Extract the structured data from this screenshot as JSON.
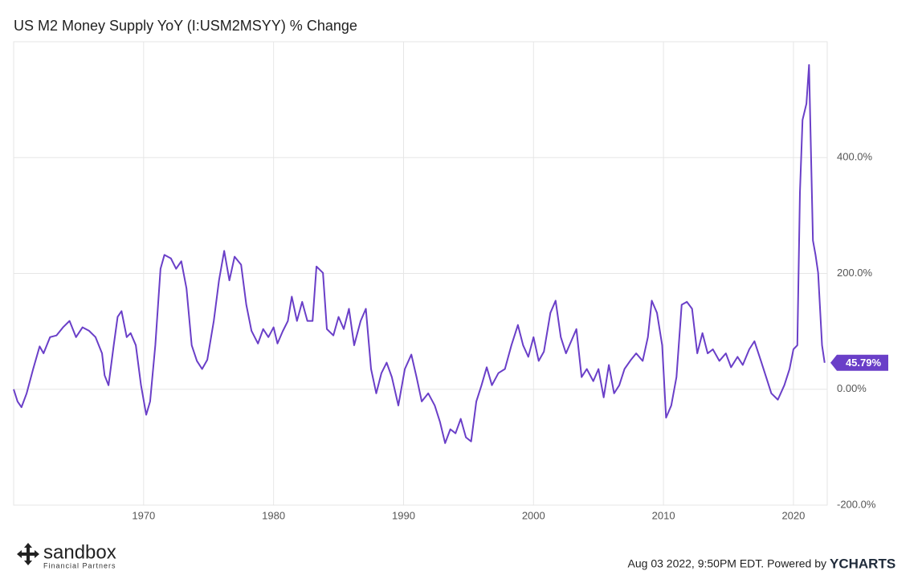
{
  "chart_data": {
    "type": "line",
    "title": "US M2 Money Supply YoY (I:USM2MSYY) % Change",
    "xlim": [
      1960.0,
      2022.6
    ],
    "xticks": [
      1970,
      1980,
      1990,
      2000,
      2010,
      2020
    ],
    "ylim": [
      -200,
      600
    ],
    "yticks": [
      {
        "value": -200,
        "label": "-200.0%"
      },
      {
        "value": 0,
        "label": "0.00%"
      },
      {
        "value": 200,
        "label": "200.0%"
      },
      {
        "value": 400,
        "label": "400.0%"
      }
    ],
    "grid": true,
    "series": [
      {
        "color": "#6a3fc8",
        "x": [
          1960.0,
          1960.3,
          1960.6,
          1961.0,
          1961.5,
          1962.0,
          1962.3,
          1962.8,
          1963.3,
          1963.8,
          1964.3,
          1964.8,
          1965.3,
          1965.8,
          1966.3,
          1966.8,
          1967.0,
          1967.3,
          1967.7,
          1968.0,
          1968.3,
          1968.7,
          1969.0,
          1969.4,
          1969.8,
          1970.2,
          1970.5,
          1970.9,
          1971.3,
          1971.6,
          1972.1,
          1972.5,
          1972.9,
          1973.3,
          1973.7,
          1974.1,
          1974.5,
          1974.9,
          1975.4,
          1975.8,
          1976.2,
          1976.6,
          1977.0,
          1977.5,
          1977.9,
          1978.3,
          1978.8,
          1979.2,
          1979.6,
          1980.0,
          1980.3,
          1980.7,
          1981.1,
          1981.4,
          1981.8,
          1982.2,
          1982.6,
          1983.0,
          1983.3,
          1983.8,
          1984.1,
          1984.6,
          1985.0,
          1985.4,
          1985.8,
          1986.2,
          1986.7,
          1987.1,
          1987.5,
          1987.9,
          1988.3,
          1988.7,
          1989.1,
          1989.6,
          1990.1,
          1990.6,
          1991.0,
          1991.4,
          1991.9,
          1992.4,
          1992.8,
          1993.2,
          1993.6,
          1994.0,
          1994.4,
          1994.8,
          1995.2,
          1995.6,
          1996.0,
          1996.4,
          1996.8,
          1997.3,
          1997.8,
          1998.3,
          1998.8,
          1999.2,
          1999.6,
          2000.0,
          2000.4,
          2000.8,
          2001.3,
          2001.7,
          2002.1,
          2002.5,
          2002.9,
          2003.3,
          2003.7,
          2004.1,
          2004.6,
          2005.0,
          2005.4,
          2005.8,
          2006.2,
          2006.6,
          2007.0,
          2007.5,
          2007.9,
          2008.4,
          2008.8,
          2009.1,
          2009.5,
          2009.9,
          2010.2,
          2010.6,
          2011.0,
          2011.4,
          2011.8,
          2012.2,
          2012.6,
          2013.0,
          2013.4,
          2013.8,
          2014.3,
          2014.8,
          2015.2,
          2015.7,
          2016.1,
          2016.6,
          2017.0,
          2017.5,
          2017.9,
          2018.3,
          2018.8,
          2019.3,
          2019.7,
          2020.0,
          2020.3,
          2020.5,
          2020.7,
          2021.0,
          2021.2,
          2021.5,
          2021.7,
          2021.9,
          2022.2,
          2022.4
        ],
        "values": [
          0,
          -21,
          -31,
          -7,
          35,
          74,
          62,
          90,
          93,
          107,
          118,
          90,
          107,
          101,
          90,
          62,
          24,
          7,
          76,
          125,
          135,
          90,
          97,
          76,
          7,
          -44,
          -21,
          76,
          208,
          232,
          226,
          208,
          221,
          174,
          76,
          49,
          35,
          51,
          118,
          188,
          239,
          188,
          229,
          215,
          146,
          101,
          79,
          104,
          90,
          107,
          79,
          100,
          118,
          160,
          118,
          151,
          118,
          118,
          212,
          201,
          104,
          93,
          125,
          104,
          139,
          76,
          118,
          139,
          35,
          -7,
          28,
          46,
          21,
          -28,
          35,
          60,
          21,
          -21,
          -7,
          -28,
          -56,
          -93,
          -69,
          -76,
          -51,
          -83,
          -90,
          -21,
          7,
          38,
          7,
          28,
          35,
          76,
          111,
          76,
          56,
          90,
          49,
          65,
          132,
          153,
          90,
          62,
          83,
          104,
          21,
          35,
          14,
          35,
          -14,
          42,
          -7,
          7,
          35,
          51,
          62,
          49,
          90,
          153,
          132,
          76,
          -49,
          -28,
          21,
          146,
          151,
          139,
          62,
          97,
          62,
          69,
          49,
          62,
          38,
          56,
          42,
          69,
          83,
          49,
          21,
          -7,
          -18,
          7,
          35,
          69,
          76,
          340,
          465,
          493,
          560,
          257,
          232,
          201,
          76,
          45.79
        ]
      }
    ],
    "annotations": [
      {
        "x": 2022.4,
        "value": 45.79,
        "label": "45.79%"
      }
    ],
    "footer": "Aug 03 2022, 9:50PM EDT. Powered by",
    "footer_brand": "YCHARTS",
    "logo": {
      "name": "sandbox",
      "tagline": "Financial Partners"
    }
  }
}
